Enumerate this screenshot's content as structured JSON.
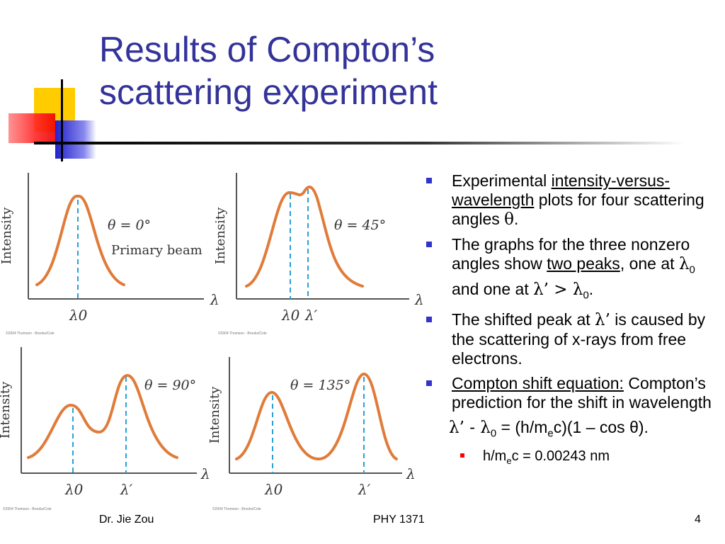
{
  "slide": {
    "title_line1": "Results of Compton’s",
    "title_line2": "scattering experiment",
    "page_number": "4"
  },
  "colors": {
    "title": "#333399",
    "curve": "#e07b39",
    "dashed": "#2aa0d8",
    "bullet": "#3333cc",
    "sub_bullet": "#ff0000"
  },
  "figure": {
    "ylabel": "Intensity",
    "xlabel": "λ",
    "lambda0": "λ0",
    "lambda_prime": "λ′",
    "copyright": "©2004 Thomson - Brooks/Cole",
    "panels": [
      {
        "angle_label": "θ = 0°",
        "extra_label": "Primary beam"
      },
      {
        "angle_label": "θ = 45°",
        "extra_label": ""
      },
      {
        "angle_label": "θ = 90°",
        "extra_label": ""
      },
      {
        "angle_label": "θ = 135°",
        "extra_label": ""
      }
    ]
  },
  "bullets": {
    "b1_pre": "Experimental ",
    "b1_link": "intensity-versus-wavelength",
    "b1_post": " plots for four scattering angles ",
    "b1_theta": "θ",
    "b1_end": ".",
    "b2_pre": "The graphs for the three nonzero angles show ",
    "b2_link": "two peaks",
    "b2_post": ", one at ",
    "b2_l0": "λ",
    "b2_l0_sub": "0",
    "b2_mid": " and one at ",
    "b2_lp": "λ’ > λ",
    "b2_lp_sub": "0",
    "b2_end": ".",
    "b3_pre": "The shifted peak at ",
    "b3_lp": "λ’",
    "b3_post": " is caused by the scattering of x-rays from free electrons.",
    "b4_link": "Compton shift equation:",
    "b4_post": " Compton’s prediction for the shift in wavelength",
    "eq_a": "λ’ - λ",
    "eq_a_sub": "0",
    "eq_b": " = (h/m",
    "eq_b_sub": "e",
    "eq_c": "c)(1 – cos θ).",
    "sub_a": "h/m",
    "sub_a_sub": "e",
    "sub_b": "c = 0.00243 nm"
  },
  "footer": {
    "author": "Dr. Jie Zou",
    "course": "PHY 1371"
  }
}
